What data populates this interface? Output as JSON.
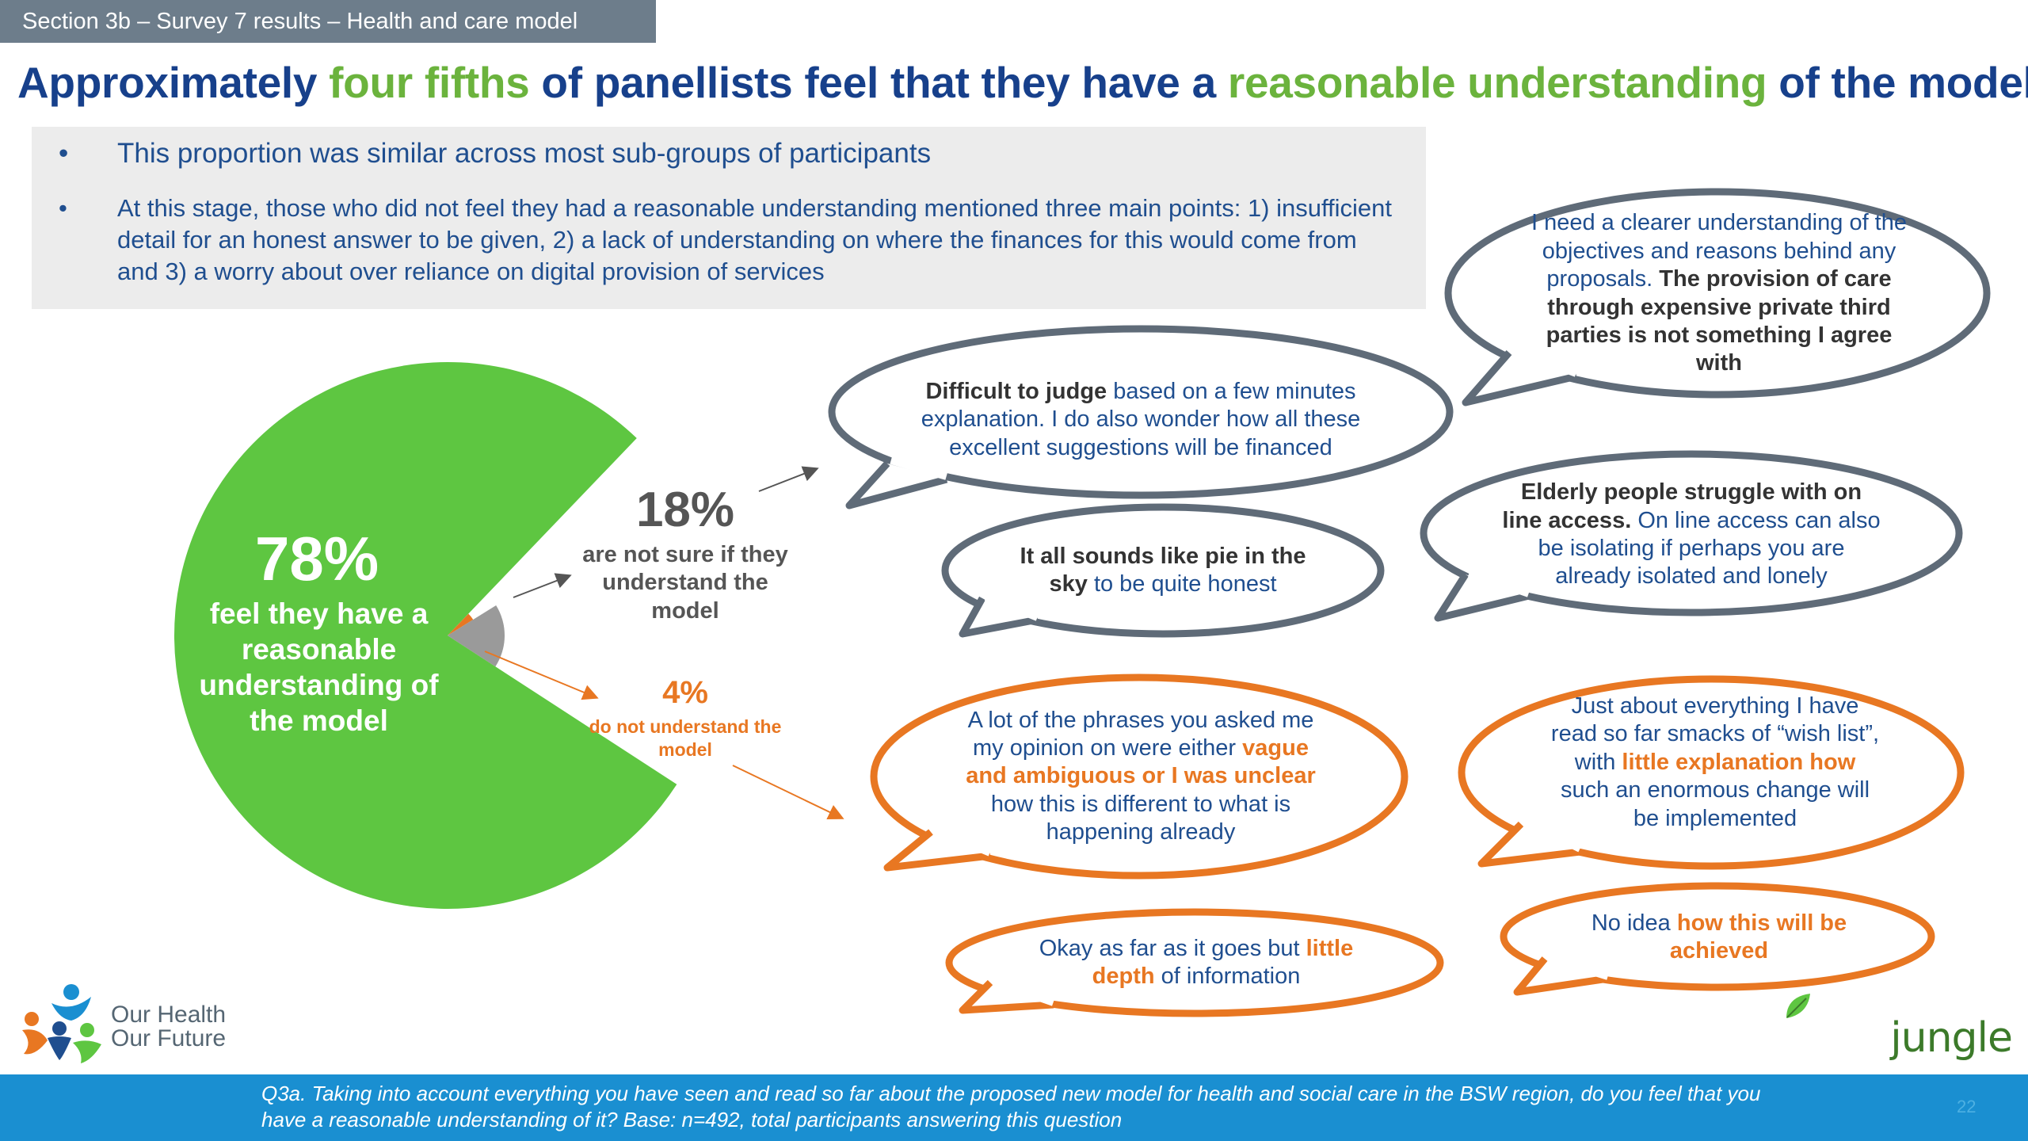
{
  "section_tag": "Section 3b – Survey 7 results – Health and care model",
  "title": {
    "p1": "Approximately ",
    "h1": "four fifths",
    "p2": " of panellists feel that they have a ",
    "h2": "reasonable understanding",
    "p3": " of the model"
  },
  "bullets": [
    "This proportion was similar across most sub-groups of participants",
    "At this stage, those who did not feel they had a reasonable understanding mentioned three main points: 1) insufficient detail for an honest answer to be given, 2) a lack of understanding on where the finances for this would come from and 3) a worry about over reliance on digital provision of services"
  ],
  "chart_data": {
    "type": "pie",
    "slices": [
      {
        "name": "feel they have a reasonable understanding of the model",
        "value": 78,
        "color": "#5ec641"
      },
      {
        "name": "are not sure if they understand the model",
        "value": 18,
        "color": "#9a9a9a"
      },
      {
        "name": "do not understand the model",
        "value": 4,
        "color": "#e87722"
      }
    ],
    "labels": {
      "s78_pct": "78%",
      "s78_text": "feel they have a reasonable understanding of the model",
      "s18_pct": "18%",
      "s18_text": "are not sure if they understand the model",
      "s4_pct": "4%",
      "s4_text": "do not understand the model"
    }
  },
  "quotes": {
    "q1": {
      "a": "Difficult to judge ",
      "b": "based on a few minutes explanation. I do also wonder how all these excellent suggestions will be financed"
    },
    "q2": {
      "a": "I need a clearer understanding of the objectives and reasons behind any proposals. ",
      "b": "The provision of care through expensive private third parties is not something I agree with"
    },
    "q3": {
      "a": "It all sounds like pie in the sky ",
      "b": "to be quite honest"
    },
    "q4": {
      "a": "Elderly people struggle with on line access. ",
      "b": "On line access can also be isolating if perhaps you are already isolated and lonely"
    },
    "q5": {
      "a": "A lot of the phrases you asked me my opinion on were either ",
      "b": "vague and ambiguous or I was unclear",
      "c": " how this is different to what is happening already"
    },
    "q6": {
      "a": "Just about everything I have read so far smacks of “wish list”, with ",
      "b": "little explanation how",
      "c": " such an enormous change will be implemented"
    },
    "q7": {
      "a": "Okay as far as it goes but ",
      "b": "little depth",
      "c": " of information"
    },
    "q8": {
      "a": "No idea ",
      "b": "how this will be achieved"
    }
  },
  "colors": {
    "navy": "#17408b",
    "green": "#6bb33d",
    "grey_bubble": "#5f6b78",
    "orange": "#e87722",
    "footer": "#1a8fd1"
  },
  "logo_left": {
    "line1": "Our Health",
    "line2": "Our Future"
  },
  "logo_right": "jungle green",
  "footnote": "Q3a. Taking into account everything you have seen and read so far about the proposed new model for health and social care in the BSW region, do you feel that you have a reasonable understanding of it? Base: n=492, total participants answering this question",
  "page_number": "22"
}
